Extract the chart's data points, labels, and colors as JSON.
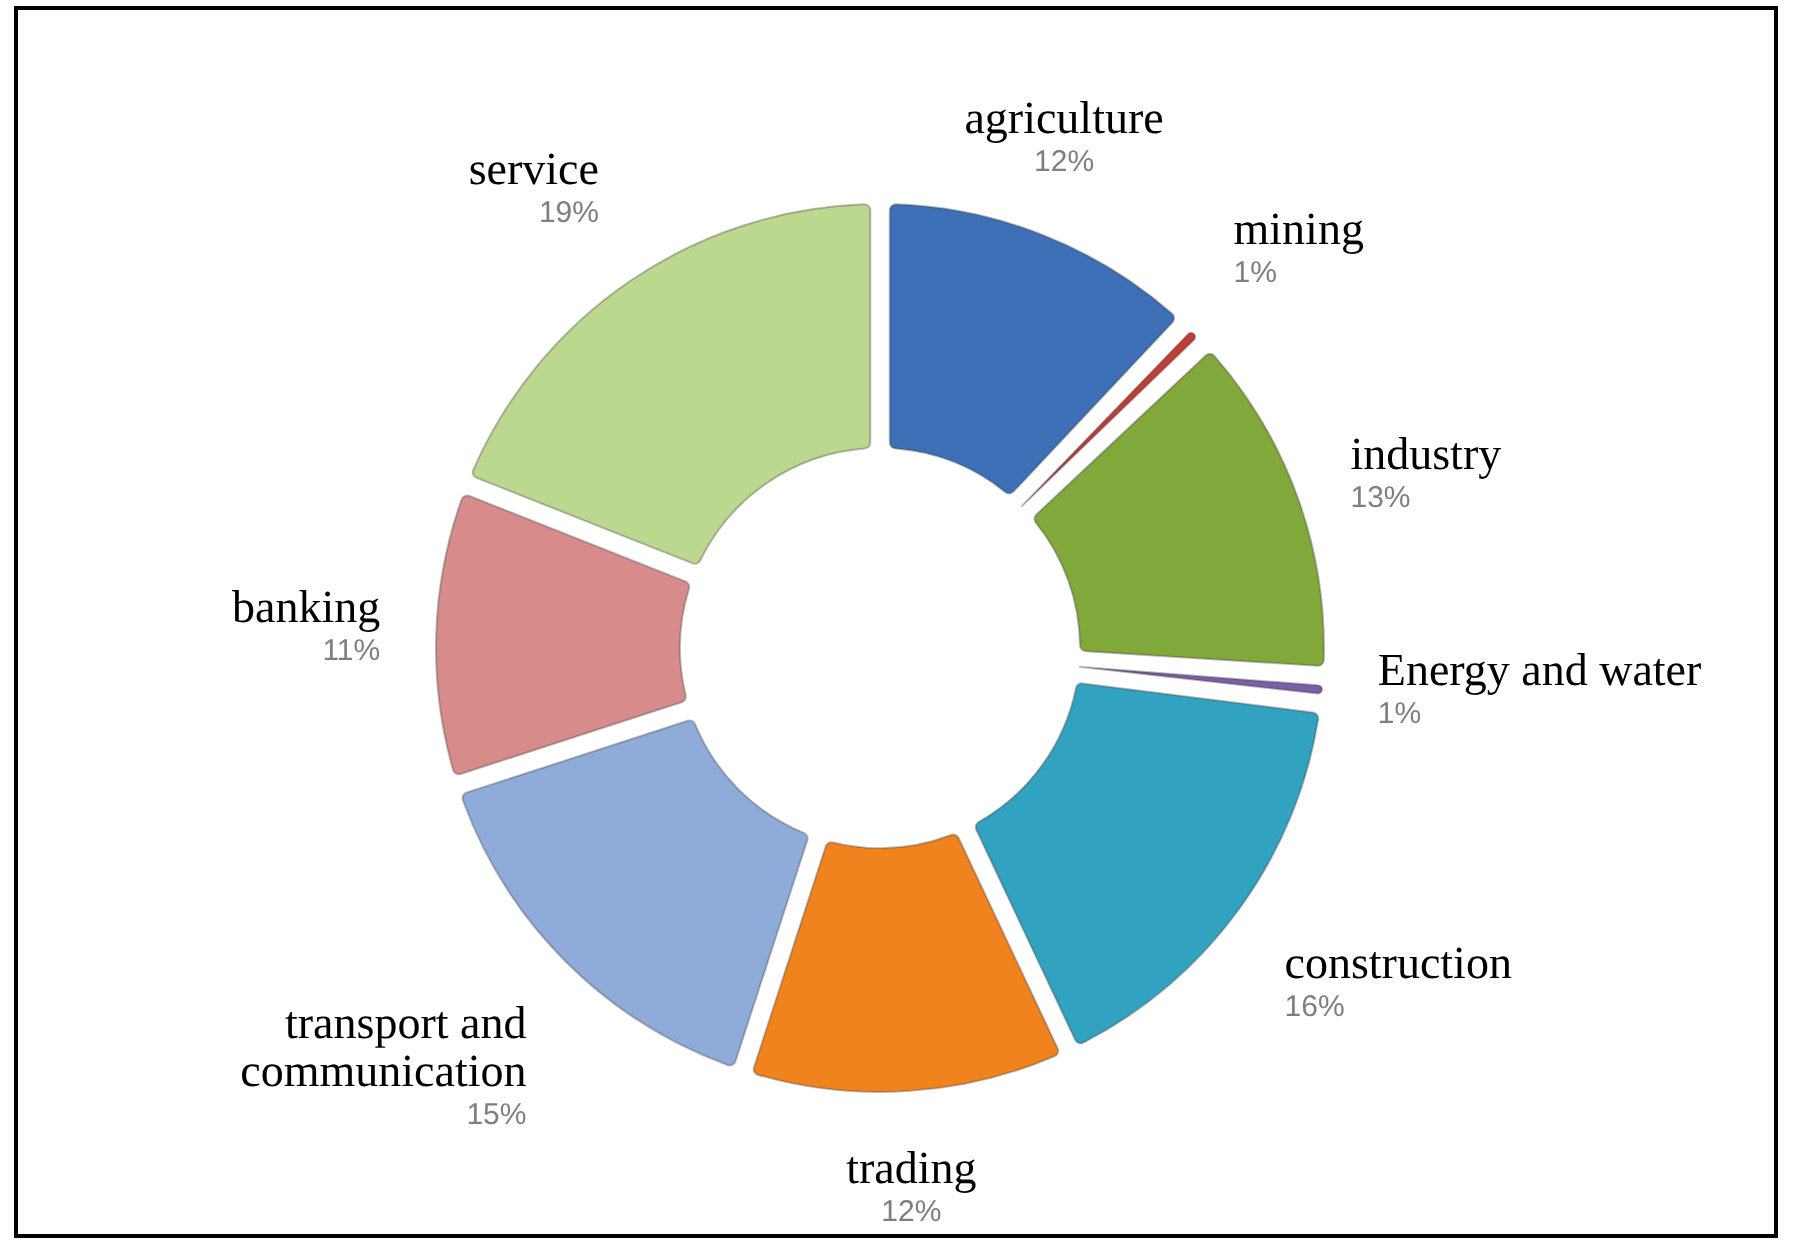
{
  "chart_data": {
    "type": "donut",
    "categories": [
      "agriculture",
      "mining",
      "industry",
      "Energy and water",
      "construction",
      "trading",
      "transport and communication",
      "banking",
      "service"
    ],
    "values": [
      12,
      1,
      13,
      1,
      16,
      12,
      15,
      11,
      19
    ],
    "colors": [
      "#3d6fb6",
      "#c43c35",
      "#80a83b",
      "#7b5ea8",
      "#31a2bf",
      "#f0831e",
      "#8fabd9",
      "#d88b8b",
      "#bcd88e"
    ],
    "value_labels": [
      "12%",
      "1%",
      "13%",
      "1%",
      "16%",
      "12%",
      "15%",
      "11%",
      "19%"
    ]
  }
}
